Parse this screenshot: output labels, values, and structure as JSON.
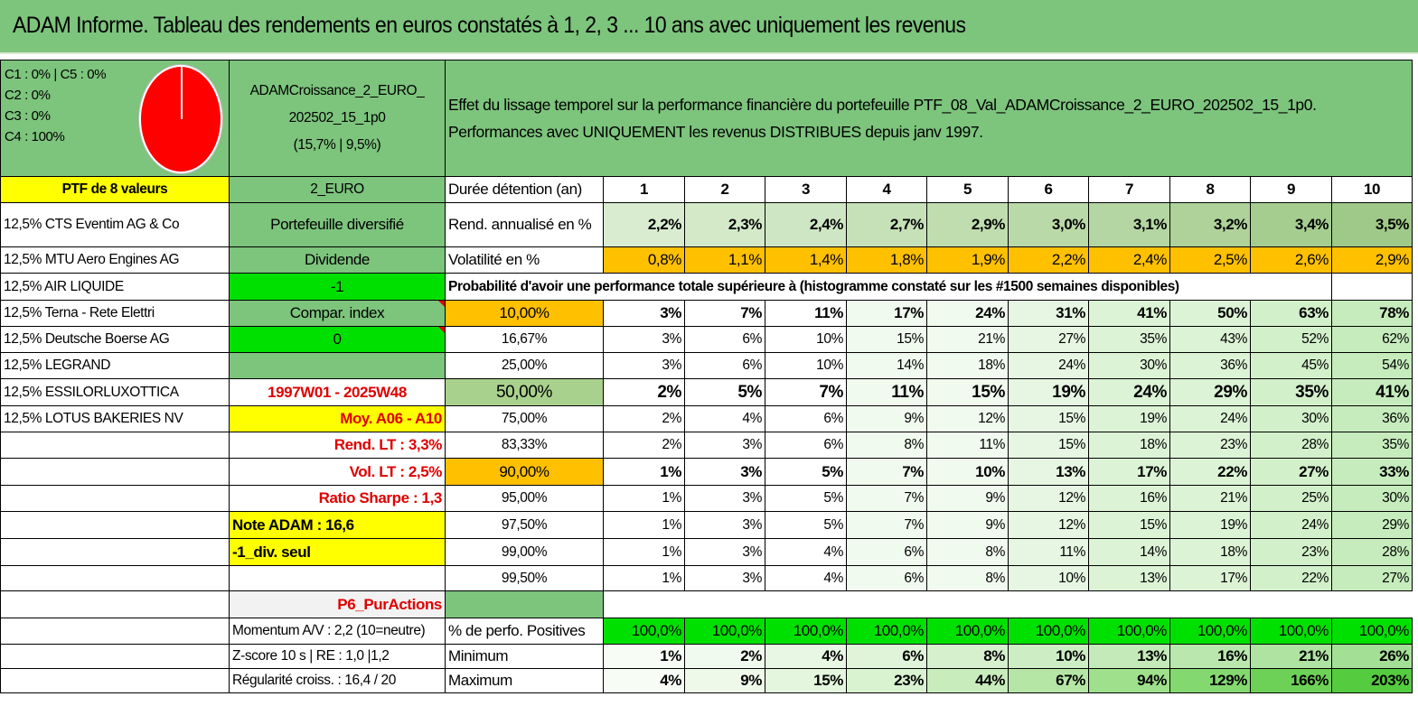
{
  "title": "ADAM Informe. Tableau des rendements en euros constatés à 1, 2, 3 ... 10 ans avec uniquement les revenus",
  "alloc": [
    "C1 : 0% | C5 : 0%",
    "C2 : 0%",
    "C3 : 0%",
    "C4 : 100%"
  ],
  "fund": {
    "name1": "ADAMCroissance_2_EURO_",
    "name2": "202502_15_1p0",
    "stats": "(15,7% | 9,5%)"
  },
  "description": {
    "line1": "Effet du lissage temporel sur la performance financière du portefeuille PTF_08_Val_ADAMCroissance_2_EURO_202502_15_1p0.",
    "line2": "Performances avec UNIQUEMENT les revenus DISTRIBUES depuis janv 1997."
  },
  "col1": [
    "PTF de 8 valeurs",
    "12,5% CTS Eventim AG & Co",
    "12,5% MTU Aero Engines AG",
    "12,5% AIR LIQUIDE",
    "12,5% Terna - Rete Elettri",
    "12,5% Deutsche Boerse AG",
    "12,5% LEGRAND",
    "12,5% ESSILORLUXOTTICA",
    "12,5% LOTUS BAKERIES NV"
  ],
  "col2": {
    "currency": "2_EURO",
    "type": "Portefeuille diversifié",
    "dividende": "Dividende",
    "div_value": "-1",
    "compar": "Compar. index",
    "compar_value": "0",
    "period": "1997W01 - 2025W48",
    "moy": "Moy. A06 - A10",
    "rend_lt": "Rend. LT : 3,3%",
    "vol_lt": "Vol. LT : 2,5%",
    "sharpe": "Ratio Sharpe : 1,3",
    "note": "Note ADAM : 16,6",
    "div_seul": "-1_div. seul",
    "p6": "P6_PurActions",
    "momentum": "Momentum A/V : 2,2 (10=neutre)",
    "zscore": "Z-score 10 s | RE : 1,0 |1,2",
    "regularite": "Régularité croiss. : 16,4 / 20"
  },
  "header": {
    "label": "Durée détention (an)",
    "years": [
      "1",
      "2",
      "3",
      "4",
      "5",
      "6",
      "7",
      "8",
      "9",
      "10"
    ]
  },
  "rend": {
    "label": "Rend. annualisé en %",
    "values": [
      "2,2%",
      "2,3%",
      "2,4%",
      "2,7%",
      "2,9%",
      "3,0%",
      "3,1%",
      "3,2%",
      "3,4%",
      "3,5%"
    ]
  },
  "vol": {
    "label": "Volatilité en %",
    "values": [
      "0,8%",
      "1,1%",
      "1,4%",
      "1,8%",
      "1,9%",
      "2,2%",
      "2,4%",
      "2,5%",
      "2,6%",
      "2,9%"
    ]
  },
  "prob_title": "Probabilité d'avoir une performance totale supérieure à (histogramme constaté sur les #1500 semaines disponibles)",
  "prob_rows": [
    {
      "label": "10,00%",
      "values": [
        "3%",
        "7%",
        "11%",
        "17%",
        "24%",
        "31%",
        "41%",
        "50%",
        "63%",
        "78%"
      ]
    },
    {
      "label": "16,67%",
      "values": [
        "3%",
        "6%",
        "10%",
        "15%",
        "21%",
        "27%",
        "35%",
        "43%",
        "52%",
        "62%"
      ]
    },
    {
      "label": "25,00%",
      "values": [
        "3%",
        "6%",
        "10%",
        "14%",
        "18%",
        "24%",
        "30%",
        "36%",
        "45%",
        "54%"
      ]
    },
    {
      "label": "50,00%",
      "values": [
        "2%",
        "5%",
        "7%",
        "11%",
        "15%",
        "19%",
        "24%",
        "29%",
        "35%",
        "41%"
      ]
    },
    {
      "label": "75,00%",
      "values": [
        "2%",
        "4%",
        "6%",
        "9%",
        "12%",
        "15%",
        "19%",
        "24%",
        "30%",
        "36%"
      ]
    },
    {
      "label": "83,33%",
      "values": [
        "2%",
        "3%",
        "6%",
        "8%",
        "11%",
        "15%",
        "18%",
        "23%",
        "28%",
        "35%"
      ]
    },
    {
      "label": "90,00%",
      "values": [
        "1%",
        "3%",
        "5%",
        "7%",
        "10%",
        "13%",
        "17%",
        "22%",
        "27%",
        "33%"
      ]
    },
    {
      "label": "95,00%",
      "values": [
        "1%",
        "3%",
        "5%",
        "7%",
        "9%",
        "12%",
        "16%",
        "21%",
        "25%",
        "30%"
      ]
    },
    {
      "label": "97,50%",
      "values": [
        "1%",
        "3%",
        "5%",
        "7%",
        "9%",
        "12%",
        "15%",
        "19%",
        "24%",
        "29%"
      ]
    },
    {
      "label": "99,00%",
      "values": [
        "1%",
        "3%",
        "4%",
        "6%",
        "8%",
        "11%",
        "14%",
        "18%",
        "23%",
        "28%"
      ]
    },
    {
      "label": "99,50%",
      "values": [
        "1%",
        "3%",
        "4%",
        "6%",
        "8%",
        "10%",
        "13%",
        "17%",
        "22%",
        "27%"
      ]
    }
  ],
  "pos": {
    "label": "% de perfo. Positives",
    "values": [
      "100,0%",
      "100,0%",
      "100,0%",
      "100,0%",
      "100,0%",
      "100,0%",
      "100,0%",
      "100,0%",
      "100,0%",
      "100,0%"
    ]
  },
  "min": {
    "label": "Minimum",
    "values": [
      "1%",
      "2%",
      "4%",
      "6%",
      "8%",
      "10%",
      "13%",
      "16%",
      "21%",
      "26%"
    ]
  },
  "max": {
    "label": "Maximum",
    "values": [
      "4%",
      "9%",
      "15%",
      "23%",
      "44%",
      "67%",
      "94%",
      "129%",
      "166%",
      "203%"
    ]
  },
  "colors": {
    "header_green": "#7dc47d",
    "bright_green": "#00e000",
    "yellow": "#ffff00",
    "orange": "#ffc000",
    "red_text": "#e00000",
    "pie_red": "#ff0000"
  }
}
